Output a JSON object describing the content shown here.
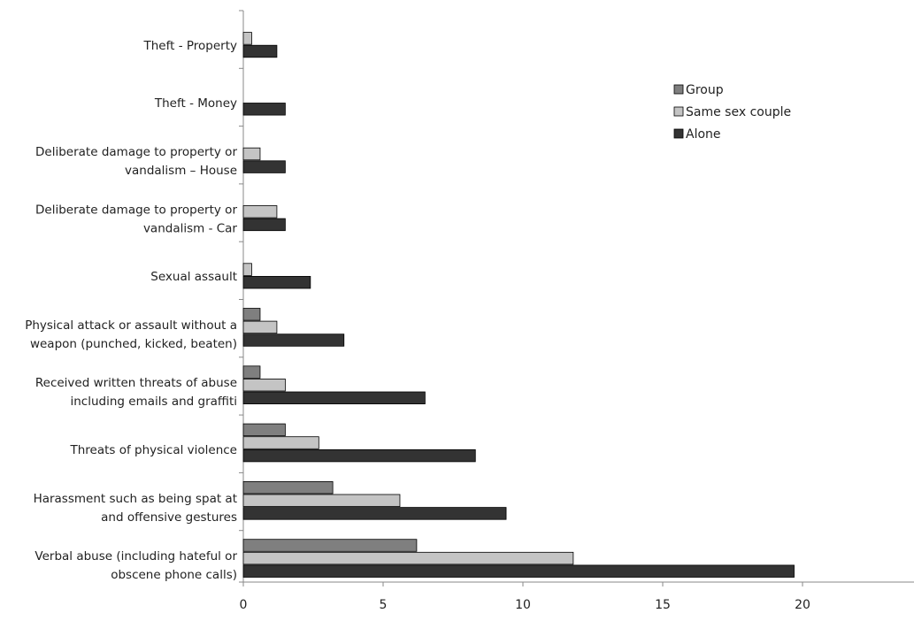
{
  "chart_data": {
    "type": "bar",
    "orientation": "horizontal",
    "categories": [
      [
        "Theft - Property"
      ],
      [
        "Theft - Money"
      ],
      [
        "Deliberate damage to property or",
        "vandalism – House"
      ],
      [
        "Deliberate damage to property or",
        "vandalism - Car"
      ],
      [
        "Sexual assault"
      ],
      [
        "Physical attack or assault without a",
        "weapon (punched, kicked, beaten)"
      ],
      [
        "Received written threats of abuse",
        "including emails and graffiti"
      ],
      [
        "Threats of physical violence"
      ],
      [
        "Harassment such as being spat at",
        "and offensive gestures"
      ],
      [
        "Verbal abuse (including hateful or",
        "obscene phone calls)"
      ]
    ],
    "series": [
      {
        "name": "Group",
        "color": "#7f7f7f",
        "values": [
          0,
          0,
          0,
          0,
          0,
          0.6,
          0.6,
          1.5,
          3.2,
          6.2
        ]
      },
      {
        "name": "Same sex couple",
        "color": "#c4c4c4",
        "values": [
          0.3,
          0,
          0.6,
          1.2,
          0.3,
          1.2,
          1.5,
          2.7,
          5.6,
          11.8
        ]
      },
      {
        "name": "Alone",
        "color": "#333333",
        "values": [
          1.2,
          1.5,
          1.5,
          1.5,
          2.4,
          3.6,
          6.5,
          8.3,
          9.4,
          19.7
        ]
      }
    ],
    "xlim": [
      0,
      24
    ],
    "xticks": [
      "0",
      "5",
      "10",
      "15",
      "20"
    ],
    "xlabel": "",
    "ylabel": "",
    "title": "",
    "legend_position": "top-right",
    "grid": false
  }
}
